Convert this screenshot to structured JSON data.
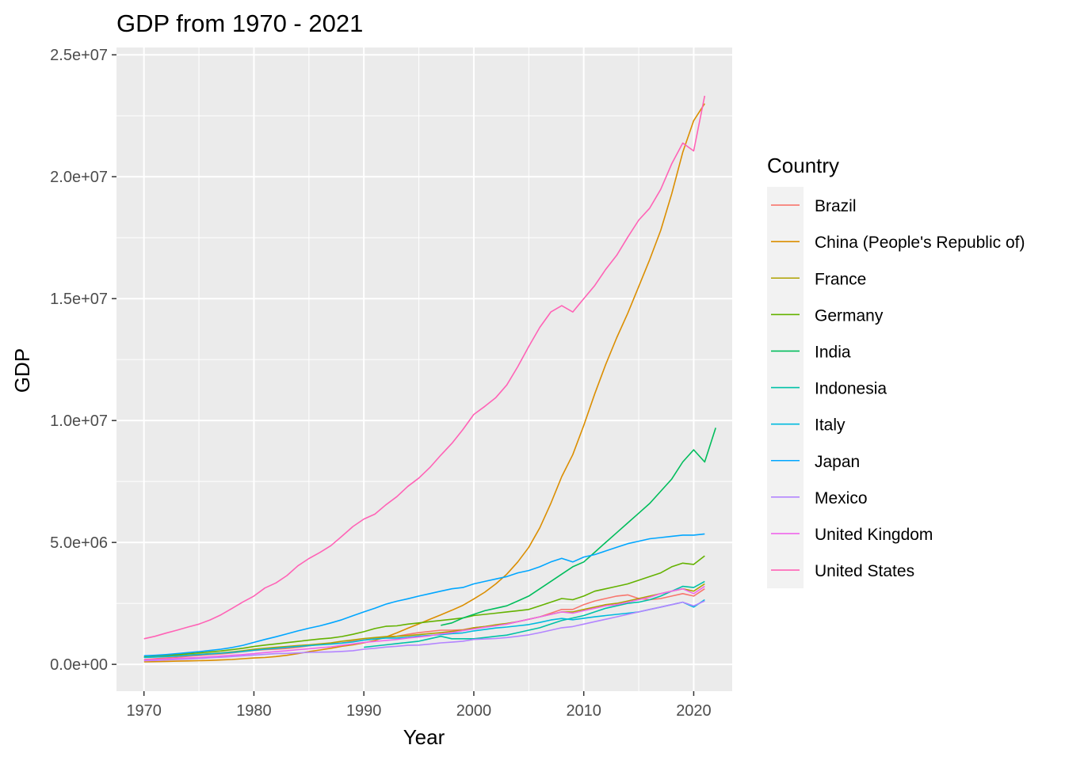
{
  "chart_data": {
    "type": "line",
    "title": "GDP from 1970 - 2021",
    "xlabel": "Year",
    "ylabel": "GDP",
    "xlim": [
      1967.5,
      2023.5
    ],
    "ylim": [
      -1100000,
      25300000
    ],
    "x_ticks": [
      1970,
      1980,
      1990,
      2000,
      2010,
      2020
    ],
    "x_tick_labels": [
      "1970",
      "1980",
      "1990",
      "2000",
      "2010",
      "2020"
    ],
    "y_ticks": [
      0,
      5000000,
      10000000,
      15000000,
      20000000,
      25000000
    ],
    "y_tick_labels": [
      "0.0e+00",
      "5.0e+06",
      "1.0e+07",
      "1.5e+07",
      "2.0e+07",
      "2.5e+07"
    ],
    "grid": true,
    "panel_background": "#EBEBEB",
    "legend": {
      "title": "Country",
      "position": "right"
    },
    "series": [
      {
        "name": "Brazil",
        "color": "#F8766D",
        "x_start": 1970,
        "values": [
          200000,
          230000,
          260000,
          290000,
          330000,
          360000,
          400000,
          430000,
          470000,
          520000,
          570000,
          600000,
          620000,
          650000,
          700000,
          760000,
          820000,
          850000,
          880000,
          950000,
          1000000,
          1060000,
          1100000,
          1150000,
          1230000,
          1300000,
          1350000,
          1400000,
          1400000,
          1420000,
          1500000,
          1550000,
          1600000,
          1650000,
          1750000,
          1850000,
          1950000,
          2100000,
          2250000,
          2250000,
          2450000,
          2600000,
          2700000,
          2800000,
          2850000,
          2700000,
          2650000,
          2700000,
          2800000,
          2900000,
          2800000,
          3100000
        ]
      },
      {
        "name": "China (People's Republic of)",
        "color": "#DB8E00",
        "x_start": 1970,
        "values": [
          100000,
          110000,
          120000,
          130000,
          140000,
          150000,
          160000,
          180000,
          200000,
          230000,
          260000,
          280000,
          320000,
          370000,
          440000,
          520000,
          590000,
          660000,
          740000,
          800000,
          880000,
          980000,
          1120000,
          1290000,
          1480000,
          1660000,
          1850000,
          2030000,
          2220000,
          2420000,
          2680000,
          2960000,
          3300000,
          3700000,
          4200000,
          4800000,
          5600000,
          6600000,
          7700000,
          8600000,
          9800000,
          11100000,
          12300000,
          13400000,
          14400000,
          15500000,
          16600000,
          17800000,
          19300000,
          21000000,
          22300000,
          23000000
        ]
      },
      {
        "name": "France",
        "color": "#AEA200",
        "x_start": 1970,
        "values": [
          300000,
          320000,
          340000,
          360000,
          390000,
          410000,
          440000,
          470000,
          510000,
          560000,
          620000,
          660000,
          700000,
          730000,
          770000,
          800000,
          840000,
          880000,
          950000,
          1000000,
          1060000,
          1100000,
          1140000,
          1150000,
          1180000,
          1220000,
          1260000,
          1300000,
          1350000,
          1400000,
          1500000,
          1550000,
          1620000,
          1680000,
          1750000,
          1850000,
          1950000,
          2050000,
          2150000,
          2150000,
          2250000,
          2350000,
          2450000,
          2500000,
          2600000,
          2700000,
          2800000,
          2900000,
          3000000,
          3100000,
          3000000,
          3300000
        ]
      },
      {
        "name": "Germany",
        "color": "#64B200",
        "x_start": 1970,
        "values": [
          300000,
          330000,
          360000,
          400000,
          440000,
          470000,
          510000,
          550000,
          600000,
          660000,
          730000,
          790000,
          840000,
          890000,
          940000,
          990000,
          1040000,
          1080000,
          1140000,
          1230000,
          1340000,
          1470000,
          1560000,
          1580000,
          1650000,
          1700000,
          1750000,
          1800000,
          1850000,
          1900000,
          2000000,
          2050000,
          2100000,
          2150000,
          2200000,
          2250000,
          2400000,
          2550000,
          2700000,
          2650000,
          2800000,
          3000000,
          3100000,
          3200000,
          3300000,
          3450000,
          3600000,
          3750000,
          4000000,
          4150000,
          4100000,
          4450000
        ]
      },
      {
        "name": "India",
        "color": "#00BD5C",
        "x_start": 1997,
        "values": [
          1600000,
          1700000,
          1900000,
          2050000,
          2200000,
          2300000,
          2400000,
          2600000,
          2800000,
          3100000,
          3400000,
          3700000,
          4000000,
          4200000,
          4600000,
          5000000,
          5400000,
          5800000,
          6200000,
          6600000,
          7100000,
          7600000,
          8300000,
          8800000,
          8300000,
          9700000
        ]
      },
      {
        "name": "Indonesia",
        "color": "#00C1A7",
        "x_start": 1990,
        "values": [
          700000,
          750000,
          800000,
          850000,
          900000,
          950000,
          1050000,
          1150000,
          1050000,
          1050000,
          1050000,
          1100000,
          1150000,
          1200000,
          1300000,
          1400000,
          1500000,
          1650000,
          1800000,
          1900000,
          2000000,
          2150000,
          2300000,
          2400000,
          2500000,
          2550000,
          2650000,
          2800000,
          3000000,
          3200000,
          3150000,
          3400000
        ]
      },
      {
        "name": "Italy",
        "color": "#00BADE",
        "x_start": 1970,
        "values": [
          280000,
          300000,
          320000,
          340000,
          370000,
          400000,
          430000,
          460000,
          490000,
          530000,
          580000,
          620000,
          660000,
          700000,
          730000,
          770000,
          800000,
          830000,
          870000,
          920000,
          990000,
          1040000,
          1080000,
          1080000,
          1110000,
          1160000,
          1190000,
          1220000,
          1260000,
          1290000,
          1370000,
          1430000,
          1490000,
          1530000,
          1580000,
          1630000,
          1720000,
          1820000,
          1880000,
          1830000,
          1890000,
          1950000,
          2000000,
          2050000,
          2100000,
          2150000,
          2250000,
          2350000,
          2450000,
          2550000,
          2350000,
          2650000
        ]
      },
      {
        "name": "Japan",
        "color": "#00A6FF",
        "x_start": 1970,
        "values": [
          350000,
          370000,
          400000,
          440000,
          480000,
          520000,
          570000,
          620000,
          690000,
          780000,
          900000,
          1020000,
          1130000,
          1250000,
          1370000,
          1480000,
          1580000,
          1700000,
          1830000,
          1990000,
          2150000,
          2300000,
          2470000,
          2590000,
          2690000,
          2800000,
          2900000,
          3000000,
          3100000,
          3150000,
          3300000,
          3400000,
          3500000,
          3600000,
          3750000,
          3850000,
          4000000,
          4200000,
          4350000,
          4200000,
          4400000,
          4500000,
          4650000,
          4800000,
          4950000,
          5050000,
          5150000,
          5200000,
          5250000,
          5300000,
          5300000,
          5350000
        ]
      },
      {
        "name": "Mexico",
        "color": "#B385FF",
        "x_start": 1970,
        "values": [
          150000,
          160000,
          180000,
          200000,
          220000,
          240000,
          270000,
          290000,
          320000,
          350000,
          380000,
          410000,
          440000,
          450000,
          470000,
          490000,
          500000,
          510000,
          530000,
          560000,
          620000,
          660000,
          710000,
          740000,
          780000,
          790000,
          830000,
          880000,
          910000,
          950000,
          1020000,
          1040000,
          1060000,
          1100000,
          1150000,
          1210000,
          1300000,
          1400000,
          1500000,
          1550000,
          1650000,
          1750000,
          1850000,
          1950000,
          2050000,
          2150000,
          2250000,
          2350000,
          2450000,
          2550000,
          2400000,
          2600000
        ]
      },
      {
        "name": "United Kingdom",
        "color": "#EF67EB",
        "x_start": 1970,
        "values": [
          180000,
          200000,
          220000,
          240000,
          260000,
          280000,
          310000,
          340000,
          370000,
          400000,
          440000,
          480000,
          520000,
          560000,
          600000,
          640000,
          680000,
          720000,
          780000,
          840000,
          900000,
          940000,
          980000,
          1020000,
          1080000,
          1120000,
          1170000,
          1250000,
          1300000,
          1380000,
          1450000,
          1520000,
          1580000,
          1650000,
          1750000,
          1850000,
          1950000,
          2050000,
          2150000,
          2100000,
          2200000,
          2300000,
          2400000,
          2450000,
          2550000,
          2650000,
          2750000,
          2900000,
          3000000,
          3100000,
          2900000,
          3200000
        ]
      },
      {
        "name": "United States",
        "color": "#FF63B6",
        "x_start": 1970,
        "values": [
          1050000,
          1150000,
          1280000,
          1400000,
          1530000,
          1650000,
          1820000,
          2030000,
          2290000,
          2560000,
          2800000,
          3130000,
          3340000,
          3640000,
          4040000,
          4340000,
          4590000,
          4870000,
          5250000,
          5650000,
          5960000,
          6160000,
          6540000,
          6880000,
          7300000,
          7640000,
          8070000,
          8580000,
          9060000,
          9630000,
          10250000,
          10580000,
          10940000,
          11460000,
          12210000,
          13040000,
          13820000,
          14450000,
          14710000,
          14450000,
          15000000,
          15540000,
          16200000,
          16780000,
          17520000,
          18220000,
          18710000,
          19480000,
          20530000,
          21380000,
          21060000,
          23320000
        ]
      }
    ]
  }
}
